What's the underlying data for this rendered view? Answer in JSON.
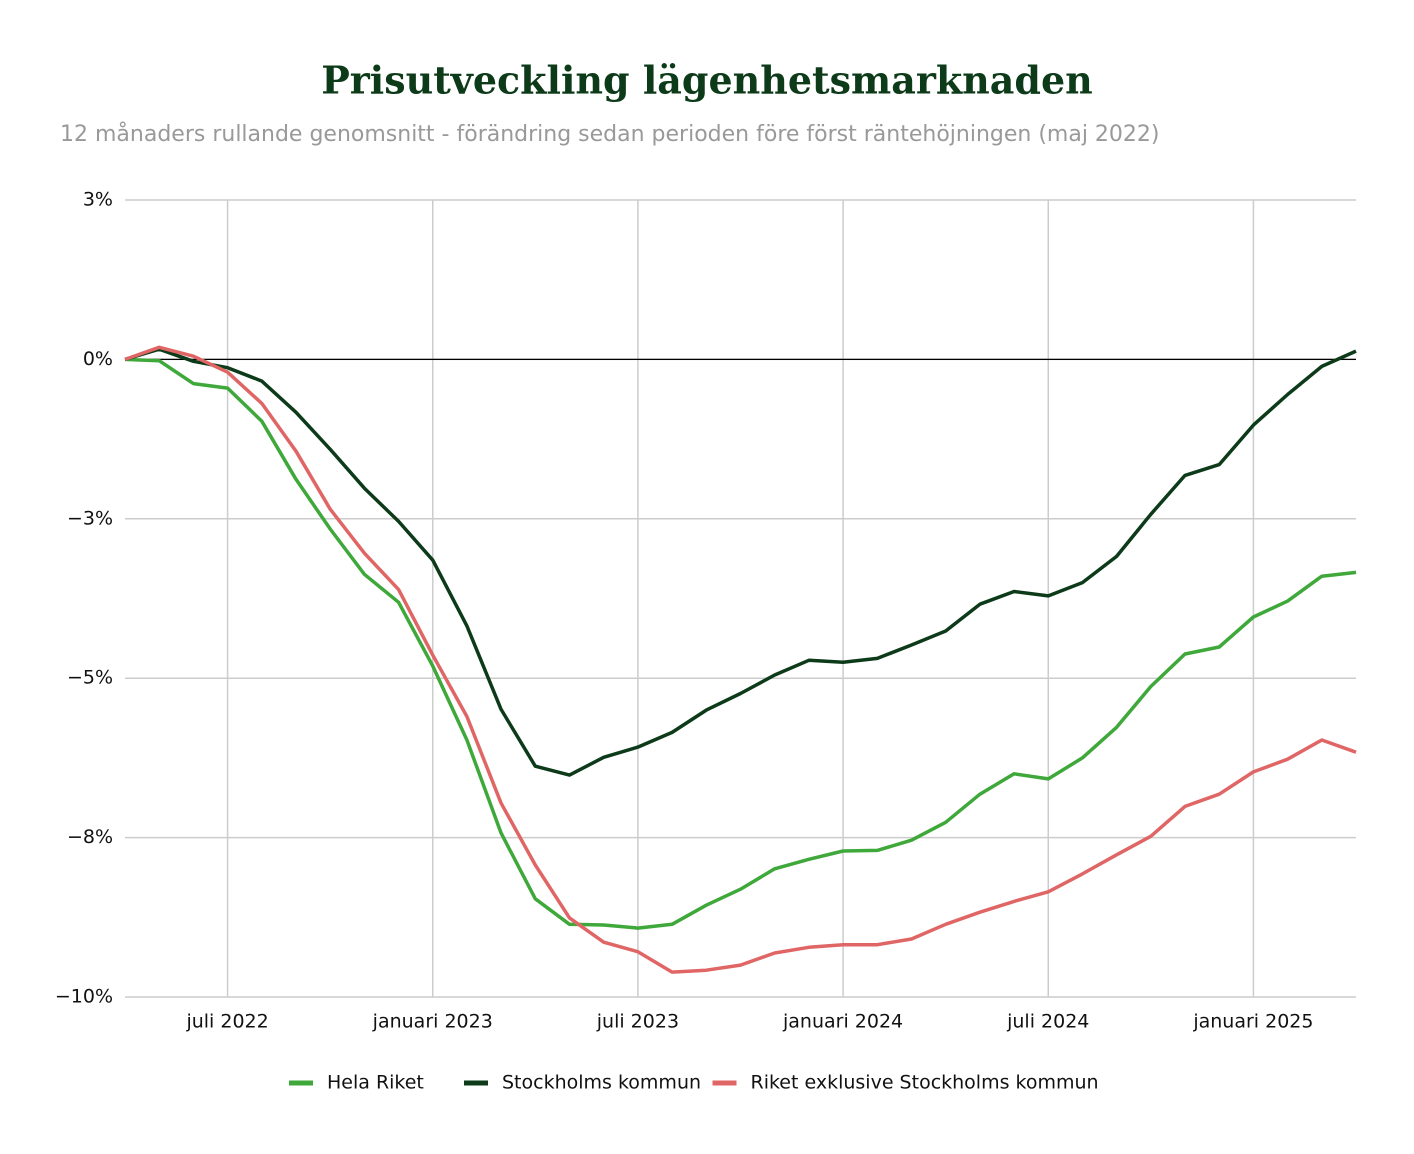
{
  "chart_data": {
    "type": "line",
    "title": "Prisutveckling lägenhetsmarknaden",
    "subtitle": "12 månaders rullande genomsnitt - förändring sedan perioden före först räntehöjningen (maj 2022)",
    "categories": [
      null,
      null,
      null,
      "juli 2022",
      null,
      null,
      null,
      null,
      null,
      "januari 2023",
      null,
      null,
      null,
      null,
      null,
      "juli 2023",
      null,
      null,
      null,
      null,
      null,
      "januari 2024",
      null,
      null,
      null,
      null,
      null,
      "juli 2024",
      null,
      null,
      null,
      null,
      null,
      "januari 2025",
      null,
      null,
      null
    ],
    "series": [
      {
        "name": "Hela Riket",
        "color": "#3fa83a",
        "values": [
          0,
          -0.02,
          -0.38,
          -0.45,
          -0.97,
          -1.88,
          -2.66,
          -3.37,
          -3.81,
          -4.81,
          -5.97,
          -7.43,
          -8.46,
          -8.86,
          -8.87,
          -8.92,
          -8.86,
          -8.56,
          -8.31,
          -7.99,
          -7.84,
          -7.71,
          -7.7,
          -7.54,
          -7.26,
          -6.82,
          -6.5,
          -6.58,
          -6.25,
          -5.77,
          -5.13,
          -4.62,
          -4.51,
          -4.04,
          -3.79,
          -3.4,
          -3.34
        ]
      },
      {
        "name": "Stockholms kommun",
        "color": "#0d3b1a",
        "values": [
          0,
          0.16,
          -0.03,
          -0.13,
          -0.34,
          -0.83,
          -1.41,
          -2.02,
          -2.54,
          -3.15,
          -4.18,
          -5.49,
          -6.38,
          -6.52,
          -6.24,
          -6.08,
          -5.85,
          -5.5,
          -5.24,
          -4.95,
          -4.72,
          -4.75,
          -4.69,
          -4.48,
          -4.26,
          -3.84,
          -3.64,
          -3.71,
          -3.5,
          -3.09,
          -2.43,
          -1.82,
          -1.65,
          -1.03,
          -0.55,
          -0.11,
          0.13
        ]
      },
      {
        "name": "Riket exklusive Stockholms kommun",
        "color": "#e06666",
        "values": [
          0,
          0.19,
          0.05,
          -0.2,
          -0.69,
          -1.44,
          -2.35,
          -3.04,
          -3.61,
          -4.64,
          -5.6,
          -6.96,
          -7.93,
          -8.76,
          -9.14,
          -9.29,
          -9.61,
          -9.58,
          -9.5,
          -9.31,
          -9.22,
          -9.18,
          -9.18,
          -9.09,
          -8.86,
          -8.67,
          -8.5,
          -8.35,
          -8.07,
          -7.77,
          -7.48,
          -7.01,
          -6.82,
          -6.47,
          -6.27,
          -5.97,
          -6.16
        ]
      }
    ],
    "ylim": [
      -10,
      2.5
    ],
    "yticks": [
      {
        "value": 2.5,
        "label": "3%"
      },
      {
        "value": 0,
        "label": "0%"
      },
      {
        "value": -2.5,
        "label": "−3%"
      },
      {
        "value": -5,
        "label": "−5%"
      },
      {
        "value": -7.5,
        "label": "−8%"
      },
      {
        "value": -10,
        "label": "−10%"
      }
    ],
    "grid": true,
    "legend": "bottom"
  }
}
